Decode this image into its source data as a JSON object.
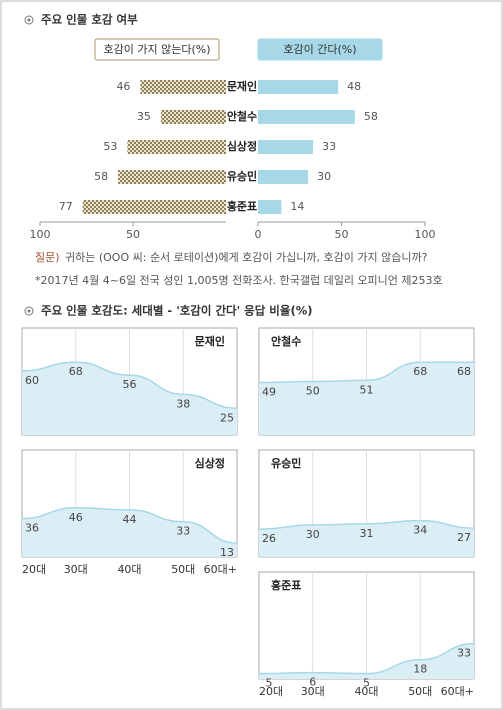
{
  "chart_data": [
    {
      "type": "butterfly",
      "title": "주요 인물 호감 여부",
      "categories": [
        "문재인",
        "안철수",
        "심상정",
        "유승민",
        "홍준표"
      ],
      "series": [
        {
          "name": "호감이 가지 않는다(%)",
          "color": "#a59563",
          "values": [
            46,
            35,
            53,
            58,
            77
          ],
          "side": "left"
        },
        {
          "name": "호감이 간다(%)",
          "color": "#a6d8e7",
          "values": [
            48,
            58,
            33,
            30,
            14
          ],
          "side": "right"
        }
      ],
      "xlim": [
        0,
        100
      ],
      "left_xticks": [
        100,
        50
      ],
      "xticks": [
        0,
        50,
        100
      ],
      "question_label": "질문)",
      "question": "귀하는 (OOO 씨: 순서 로테이션)에게 호감이 가십니까, 호감이 가지 않습니까?",
      "footnote": "*2017년 4월 4~6일 전국 성인 1,005명 전화조사. 한국갤럽 데일리 오피니언 제253호"
    },
    {
      "type": "area-multiples",
      "title": "주요 인물 호감도: 세대별 - '호감이 간다' 응답 비율(%)",
      "categories": [
        "20대",
        "30대",
        "40대",
        "50대",
        "60대+"
      ],
      "ylim": [
        0,
        100
      ],
      "color": "#dbeef5",
      "line_color": "#a6d8e7",
      "panels": [
        {
          "name": "문재인",
          "values": [
            60,
            68,
            56,
            38,
            25
          ]
        },
        {
          "name": "안철수",
          "values": [
            49,
            50,
            51,
            68,
            68
          ]
        },
        {
          "name": "심상정",
          "values": [
            36,
            46,
            44,
            33,
            13
          ]
        },
        {
          "name": "유승민",
          "values": [
            26,
            30,
            31,
            34,
            27
          ]
        },
        {
          "name": "홍준표",
          "values": [
            5,
            6,
            5,
            18,
            33
          ]
        }
      ]
    }
  ]
}
